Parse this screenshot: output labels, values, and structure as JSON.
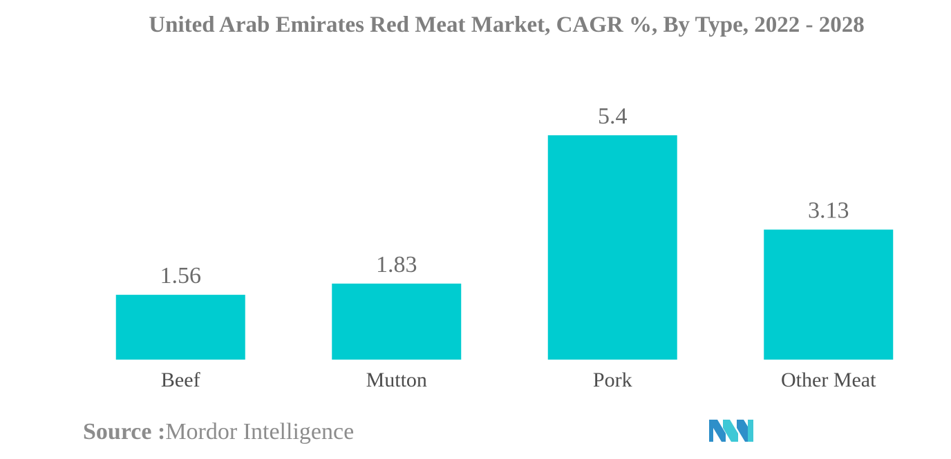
{
  "chart_data": {
    "type": "bar",
    "title": "United Arab Emirates Red Meat Market, CAGR %, By Type, 2022 - 2028",
    "categories": [
      "Beef",
      "Mutton",
      "Pork",
      "Other Meat"
    ],
    "values": [
      1.56,
      1.83,
      5.4,
      3.13
    ],
    "value_labels": [
      "1.56",
      "1.83",
      "5.4",
      "3.13"
    ],
    "xlabel": "",
    "ylabel": "",
    "ylim": [
      0,
      5.4
    ],
    "grid": false,
    "legend": "none",
    "bar_color": "#00ccd0"
  },
  "source": {
    "label": "Source :",
    "text": "Mordor Intelligence"
  },
  "logo": {
    "icon": "mordor-intelligence-logo-icon",
    "colors": [
      "#2e8fc9",
      "#3ec8d6"
    ]
  }
}
